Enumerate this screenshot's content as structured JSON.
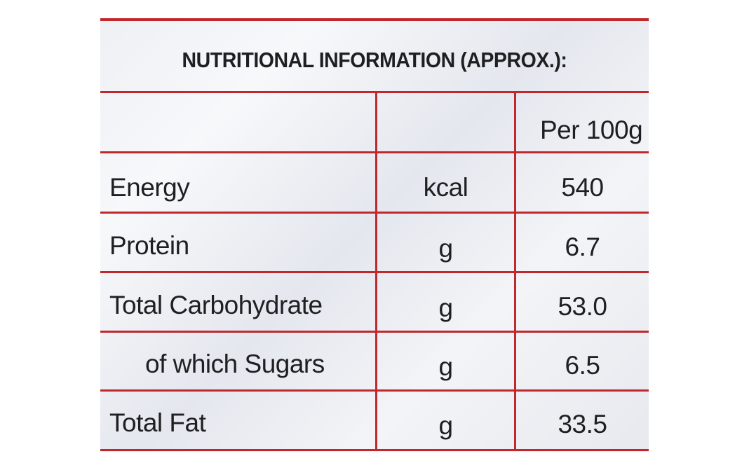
{
  "title": "NUTRITIONAL INFORMATION (APPROX.):",
  "header": {
    "nutrient": "",
    "unit": "",
    "per": "Per 100g"
  },
  "rows": [
    {
      "nutrient": "Energy",
      "unit": "kcal",
      "value": "540"
    },
    {
      "nutrient": "Protein",
      "unit": "g",
      "value": "6.7"
    },
    {
      "nutrient": "Total Carbohydrate",
      "unit": "g",
      "value": "53.0"
    },
    {
      "nutrient": "of which Sugars",
      "unit": "g",
      "value": "6.5"
    },
    {
      "nutrient": "Total Fat",
      "unit": "g",
      "value": "33.5"
    }
  ],
  "colors": {
    "rule": "#c0282e",
    "text": "#1f1f22",
    "panel": "#eef0f4"
  }
}
